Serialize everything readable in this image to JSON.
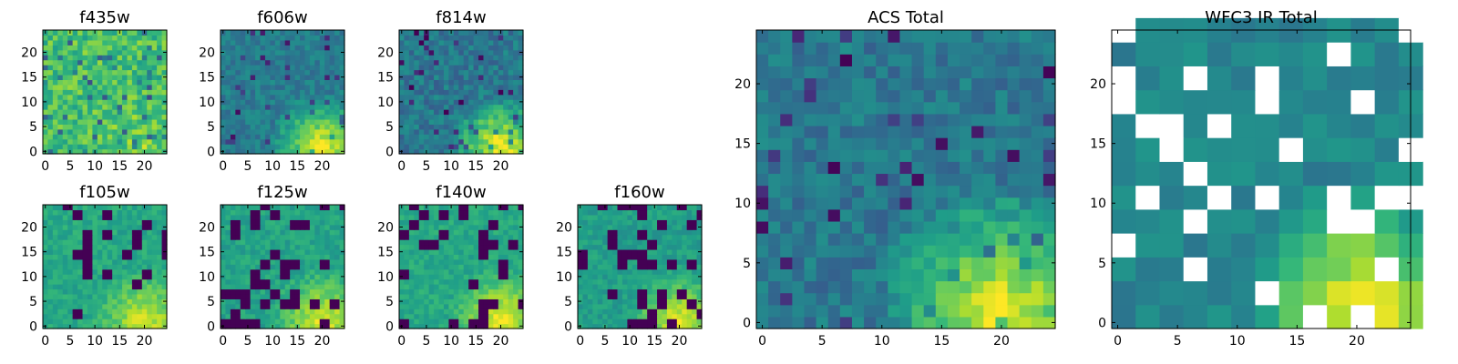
{
  "chart_data": [
    {
      "type": "heatmap",
      "title": "f435w",
      "xlabel": "",
      "ylabel": "",
      "xlim": [
        0,
        24
      ],
      "ylim": [
        0,
        24
      ],
      "xticks": [
        0,
        5,
        10,
        15,
        20
      ],
      "yticks": [
        0,
        5,
        10,
        15,
        20
      ],
      "colormap": "viridis",
      "grid": false
    },
    {
      "type": "heatmap",
      "title": "f606w",
      "xlabel": "",
      "ylabel": "",
      "xlim": [
        0,
        24
      ],
      "ylim": [
        0,
        24
      ],
      "xticks": [
        0,
        5,
        10,
        15,
        20
      ],
      "yticks": [
        0,
        5,
        10,
        15,
        20
      ],
      "colormap": "viridis",
      "grid": false
    },
    {
      "type": "heatmap",
      "title": "f814w",
      "xlabel": "",
      "ylabel": "",
      "xlim": [
        0,
        24
      ],
      "ylim": [
        0,
        24
      ],
      "xticks": [
        0,
        5,
        10,
        15,
        20
      ],
      "yticks": [
        0,
        5,
        10,
        15,
        20
      ],
      "colormap": "viridis",
      "grid": false
    },
    {
      "type": "heatmap",
      "title": "f105w",
      "xlabel": "",
      "ylabel": "",
      "xlim": [
        0,
        24
      ],
      "ylim": [
        0,
        24
      ],
      "xticks": [
        0,
        5,
        10,
        15,
        20
      ],
      "yticks": [
        0,
        5,
        10,
        15,
        20
      ],
      "colormap": "viridis",
      "grid": false
    },
    {
      "type": "heatmap",
      "title": "f125w",
      "xlabel": "",
      "ylabel": "",
      "xlim": [
        0,
        24
      ],
      "ylim": [
        0,
        24
      ],
      "xticks": [
        0,
        5,
        10,
        15,
        20
      ],
      "yticks": [
        0,
        5,
        10,
        15,
        20
      ],
      "colormap": "viridis",
      "grid": false
    },
    {
      "type": "heatmap",
      "title": "f140w",
      "xlabel": "",
      "ylabel": "",
      "xlim": [
        0,
        24
      ],
      "ylim": [
        0,
        24
      ],
      "xticks": [
        0,
        5,
        10,
        15,
        20
      ],
      "yticks": [
        0,
        5,
        10,
        15,
        20
      ],
      "colormap": "viridis",
      "grid": false
    },
    {
      "type": "heatmap",
      "title": "f160w",
      "xlabel": "",
      "ylabel": "",
      "xlim": [
        0,
        24
      ],
      "ylim": [
        0,
        24
      ],
      "xticks": [
        0,
        5,
        10,
        15,
        20
      ],
      "yticks": [
        0,
        5,
        10,
        15,
        20
      ],
      "colormap": "viridis",
      "grid": false
    },
    {
      "type": "heatmap",
      "title": "ACS Total",
      "xlabel": "",
      "ylabel": "",
      "xlim": [
        0,
        24
      ],
      "ylim": [
        0,
        24
      ],
      "xticks": [
        0,
        5,
        10,
        15,
        20
      ],
      "yticks": [
        0,
        5,
        10,
        15,
        20
      ],
      "colormap": "viridis",
      "grid": false
    },
    {
      "type": "heatmap",
      "title": "WFC3 IR Total",
      "xlabel": "",
      "ylabel": "",
      "xlim": [
        0,
        24
      ],
      "ylim": [
        0,
        24
      ],
      "xticks": [
        0,
        5,
        10,
        15,
        20
      ],
      "yticks": [
        0,
        5,
        10,
        15,
        20
      ],
      "colormap": "viridis",
      "grid": false
    }
  ]
}
